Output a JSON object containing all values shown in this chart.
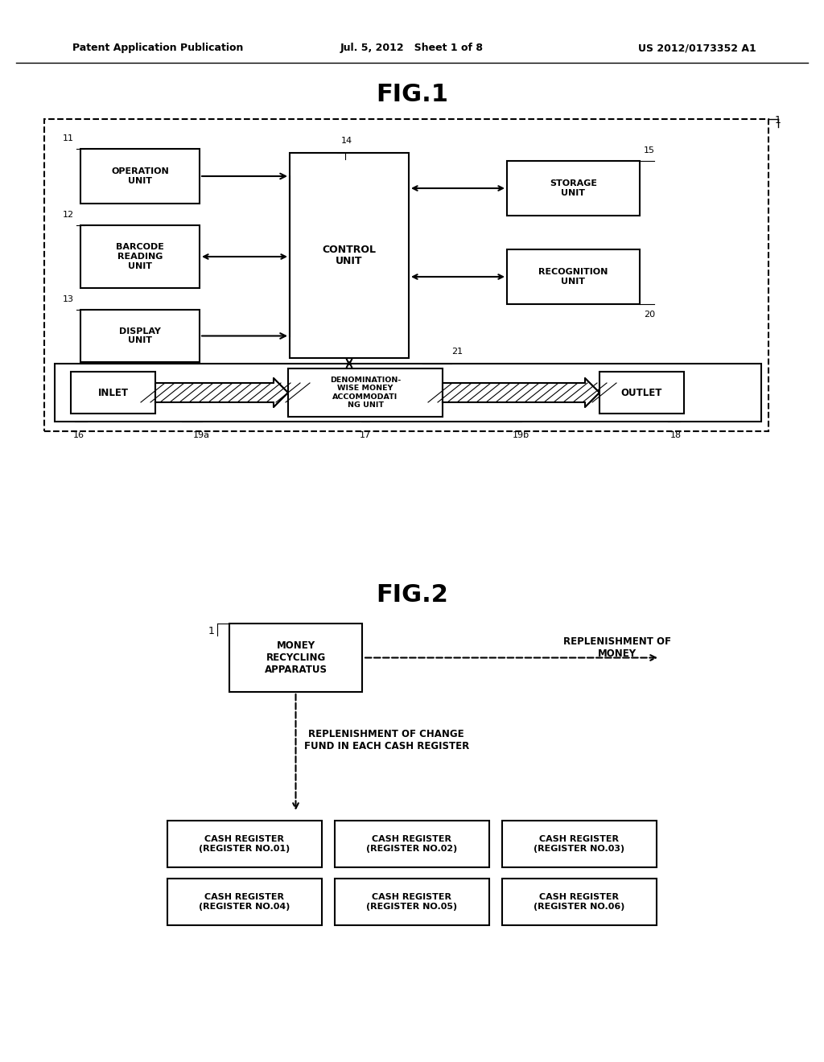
{
  "bg_color": "#ffffff",
  "header_left": "Patent Application Publication",
  "header_center": "Jul. 5, 2012   Sheet 1 of 8",
  "header_right": "US 2012/0173352 A1",
  "fig1_title": "FIG.1",
  "fig2_title": "FIG.2"
}
